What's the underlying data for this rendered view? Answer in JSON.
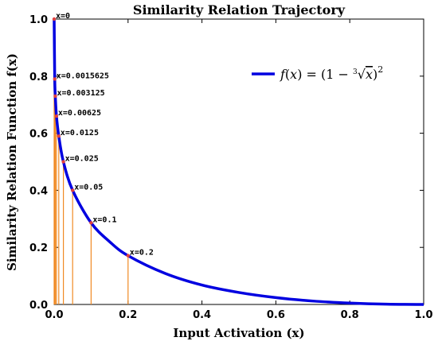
{
  "chart_data": {
    "type": "line",
    "title": "Similarity Relation Trajectory",
    "xlabel": "Input Activation (x)",
    "ylabel": "Similarity  Relation Function f(x)",
    "xlim": [
      0,
      1
    ],
    "ylim": [
      0,
      1
    ],
    "xticks": [
      "0.0",
      "0.2",
      "0.4",
      "0.6",
      "0.8",
      "1.0"
    ],
    "yticks": [
      "0.0",
      "0.2",
      "0.4",
      "0.6",
      "0.8",
      "1.0"
    ],
    "legend": {
      "label": "f(x) = (1 − ∛x)²",
      "placement": "top-right"
    },
    "grid": false,
    "series": [
      {
        "name": "f(x) = (1 − ∛x)²",
        "color": "#0000e0",
        "x": [
          0,
          0.0015625,
          0.003125,
          0.00625,
          0.0125,
          0.025,
          0.05,
          0.1,
          0.15,
          0.2,
          0.3,
          0.4,
          0.5,
          0.6,
          0.7,
          0.8,
          0.9,
          1.0
        ],
        "y": [
          1.0,
          0.79,
          0.73,
          0.66,
          0.59,
          0.5,
          0.4,
          0.286,
          0.22,
          0.171,
          0.109,
          0.068,
          0.042,
          0.024,
          0.012,
          0.005,
          0.001,
          0.0
        ]
      }
    ],
    "annotations": [
      {
        "label": "x=0",
        "x": 0,
        "y": 1.0
      },
      {
        "label": "x=0.0015625",
        "x": 0.0015625,
        "y": 0.79
      },
      {
        "label": "x=0.003125",
        "x": 0.003125,
        "y": 0.73
      },
      {
        "label": "x=0.00625",
        "x": 0.00625,
        "y": 0.66
      },
      {
        "label": "x=0.0125",
        "x": 0.0125,
        "y": 0.59
      },
      {
        "label": "x=0.025",
        "x": 0.025,
        "y": 0.5
      },
      {
        "label": "x=0.05",
        "x": 0.05,
        "y": 0.4
      },
      {
        "label": "x=0.1",
        "x": 0.1,
        "y": 0.286
      },
      {
        "label": "x=0.2",
        "x": 0.2,
        "y": 0.171
      }
    ],
    "marker_color": "#e04040",
    "stem_color": "#f08a24"
  }
}
